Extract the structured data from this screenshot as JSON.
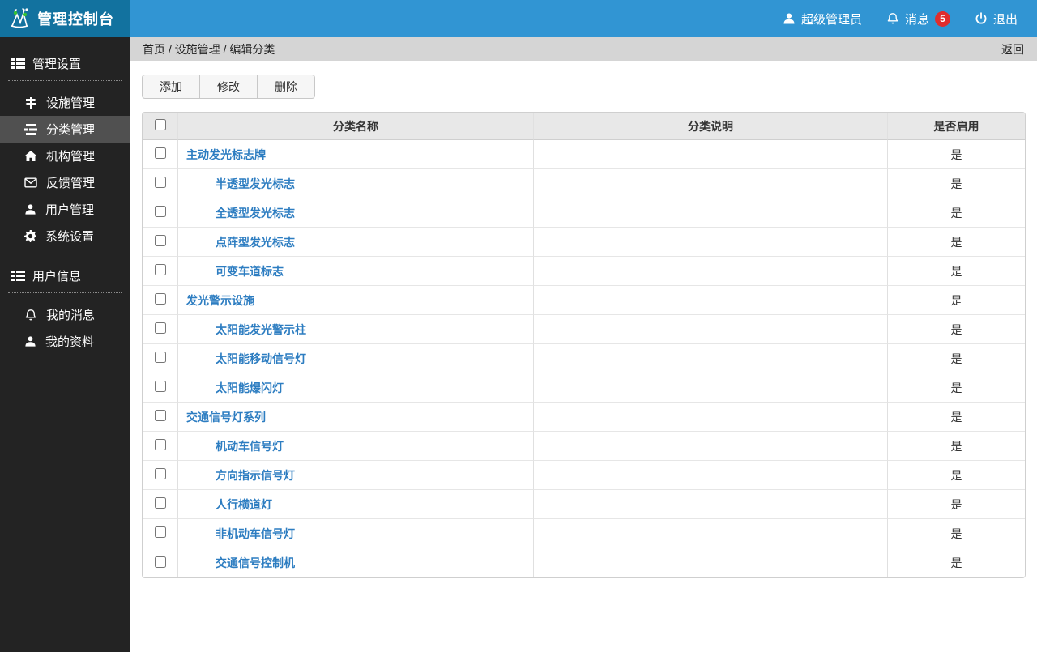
{
  "topbar": {
    "brand_title": "管理控制台",
    "user_label": "超级管理员",
    "messages_label": "消息",
    "messages_count": "5",
    "logout_label": "退出"
  },
  "sidebar": {
    "sections": [
      {
        "title": "管理设置",
        "icon": "list-icon",
        "items": [
          {
            "label": "设施管理",
            "icon": "signpost-icon",
            "active": false
          },
          {
            "label": "分类管理",
            "icon": "stream-icon",
            "active": true
          },
          {
            "label": "机构管理",
            "icon": "home-icon",
            "active": false
          },
          {
            "label": "反馈管理",
            "icon": "envelope-icon",
            "active": false
          },
          {
            "label": "用户管理",
            "icon": "user-icon",
            "active": false
          },
          {
            "label": "系统设置",
            "icon": "gear-icon",
            "active": false
          }
        ]
      },
      {
        "title": "用户信息",
        "icon": "list-icon",
        "items": [
          {
            "label": "我的消息",
            "icon": "bell-icon",
            "active": false
          },
          {
            "label": "我的资料",
            "icon": "user-icon",
            "active": false
          }
        ]
      }
    ]
  },
  "breadcrumb": {
    "path": "首页 / 设施管理 / 编辑分类",
    "back_label": "返回"
  },
  "toolbar": {
    "add_label": "添加",
    "edit_label": "修改",
    "delete_label": "删除"
  },
  "table": {
    "headers": {
      "name": "分类名称",
      "description": "分类说明",
      "enabled": "是否启用"
    },
    "rows": [
      {
        "name": "主动发光标志牌",
        "level": 0,
        "description": "",
        "enabled": "是"
      },
      {
        "name": "半透型发光标志",
        "level": 1,
        "description": "",
        "enabled": "是"
      },
      {
        "name": "全透型发光标志",
        "level": 1,
        "description": "",
        "enabled": "是"
      },
      {
        "name": "点阵型发光标志",
        "level": 1,
        "description": "",
        "enabled": "是"
      },
      {
        "name": "可变车道标志",
        "level": 1,
        "description": "",
        "enabled": "是"
      },
      {
        "name": "发光警示设施",
        "level": 0,
        "description": "",
        "enabled": "是"
      },
      {
        "name": "太阳能发光警示柱",
        "level": 1,
        "description": "",
        "enabled": "是"
      },
      {
        "name": "太阳能移动信号灯",
        "level": 1,
        "description": "",
        "enabled": "是"
      },
      {
        "name": "太阳能爆闪灯",
        "level": 1,
        "description": "",
        "enabled": "是"
      },
      {
        "name": "交通信号灯系列",
        "level": 0,
        "description": "",
        "enabled": "是"
      },
      {
        "name": "机动车信号灯",
        "level": 1,
        "description": "",
        "enabled": "是"
      },
      {
        "name": "方向指示信号灯",
        "level": 1,
        "description": "",
        "enabled": "是"
      },
      {
        "name": "人行横道灯",
        "level": 1,
        "description": "",
        "enabled": "是"
      },
      {
        "name": "非机动车信号灯",
        "level": 1,
        "description": "",
        "enabled": "是"
      },
      {
        "name": "交通信号控制机",
        "level": 1,
        "description": "",
        "enabled": "是"
      }
    ]
  },
  "colors": {
    "topbar": "#3195d3",
    "brand_bg": "#12729f",
    "sidebar_bg": "#232323",
    "active_item_bg": "#505050",
    "breadcrumb_bg": "#d5d5d5",
    "link": "#2d7dc1",
    "badge": "#e02d2d"
  }
}
